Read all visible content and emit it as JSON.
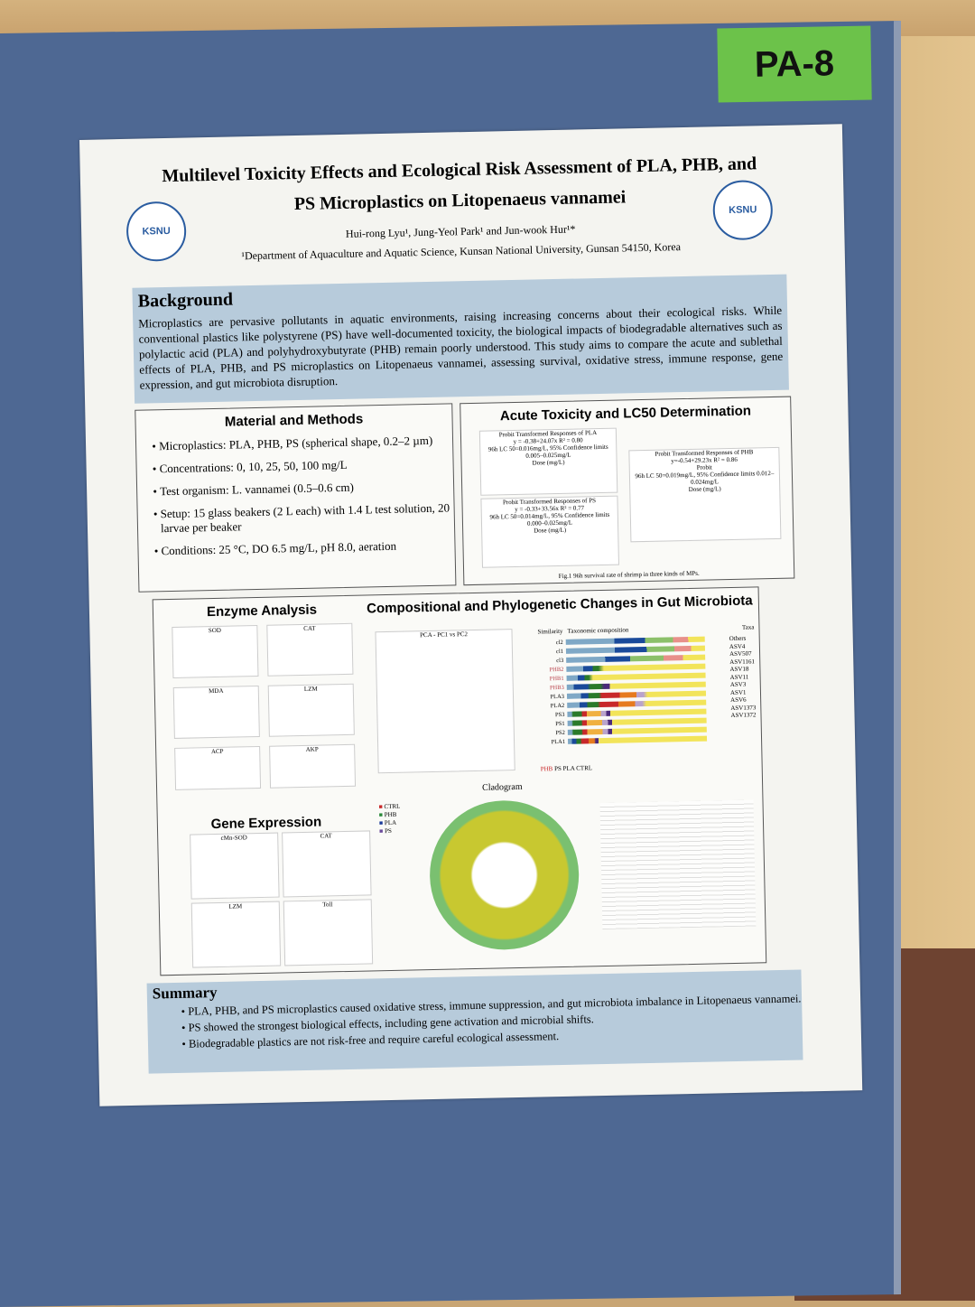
{
  "booth_tag": "PA-8",
  "poster": {
    "title_line1": "Multilevel Toxicity Effects and Ecological Risk Assessment of PLA, PHB, and",
    "title_line2": "PS Microplastics on Litopenaeus vannamei",
    "authors": "Hui-rong Lyu¹, Jung-Yeol Park¹ and Jun-wook Hur¹*",
    "affiliation": "¹Department of Aquaculture and Aquatic Science, Kunsan National University, Gunsan 54150, Korea",
    "logo_left": "KSNU",
    "logo_right": "KSNU",
    "background": {
      "heading": "Background",
      "text": "Microplastics are pervasive pollutants in aquatic environments, raising increasing concerns about their ecological risks. While conventional plastics like polystyrene (PS) have well-documented toxicity, the biological impacts of biodegradable alternatives such as polylactic acid (PLA) and polyhydroxybutyrate (PHB) remain poorly understood. This study aims to compare the acute and sublethal effects of PLA, PHB, and PS microplastics on Litopenaeus vannamei, assessing survival, oxidative stress, immune response, gene expression, and gut microbiota disruption."
    },
    "methods": {
      "heading": "Material and Methods",
      "items": [
        "Microplastics: PLA, PHB, PS (spherical shape, 0.2–2 µm)",
        "Concentrations: 0, 10, 25, 50, 100 mg/L",
        "Test organism: L. vannamei (0.5–0.6 cm)",
        "Setup: 15 glass beakers (2 L each) with 1.4 L test solution, 20 larvae per beaker",
        "Conditions: 25 °C, DO 6.5 mg/L, pH 8.0, aeration"
      ]
    },
    "acute": {
      "heading": "Acute Toxicity and LC50 Determination",
      "charts": [
        {
          "title": "Probit Transformed Responses of PLA",
          "eq": "y = -0.38+24.07x  R² = 0.80",
          "note": "96h LC 50=0.016mg/L, 95% Confidence limits 0.005–0.025mg/L"
        },
        {
          "title": "Probit Transformed Responses of PS",
          "eq": "y = -0.33+33.56x  R² = 0.77",
          "note": "96h LC 50=0.014mg/L, 95% Confidence limits 0.000–0.025mg/L"
        },
        {
          "title": "Probit Transformed Responses of PHB",
          "eq": "y=-0.54+29.23x  R² = 0.86",
          "note": "96h LC 50=0.019mg/L, 95% Confidence limits 0.012–0.024mg/L"
        }
      ],
      "xlabel": "Dose (mg/L)",
      "ylabel": "Probit",
      "caption": "Fig.1 96h survival rate of shrimp in three kinds of MPs."
    },
    "enzyme": {
      "heading": "Enzyme Analysis",
      "panels": [
        "SOD",
        "CAT",
        "MDA",
        "LZM",
        "ACP",
        "AKP"
      ]
    },
    "gene": {
      "heading": "Gene Expression",
      "panels": [
        "cMn-SOD",
        "CAT",
        "LZM",
        "Toll"
      ]
    },
    "micro": {
      "heading": "Compositional and Phylogenetic Changes in Gut Microbiota",
      "pca_title": "PCA - PC1 vs PC2",
      "similarity": "Similarity",
      "taxcomp": "Taxonomic composition",
      "taxa_label": "Taxa",
      "samples": [
        "cl2",
        "cl1",
        "cl3",
        "PHB2",
        "PHB1",
        "PHB3",
        "PLA3",
        "PLA2",
        "PS3",
        "PS1",
        "PS2",
        "PLA1"
      ],
      "taxa": [
        "Others",
        "ASV4",
        "ASV507",
        "ASV1161",
        "ASV18",
        "ASV11",
        "ASV3",
        "ASV1",
        "ASV6",
        "ASV1373",
        "ASV1372"
      ],
      "taxa_colors": [
        "#f2e45a",
        "#4b2a7a",
        "#b9a3cc",
        "#e67a1e",
        "#f0b040",
        "#c8282a",
        "#e8908a",
        "#2a7a2a",
        "#8cc06a",
        "#1a4a9a",
        "#7fa8c6"
      ],
      "groups": [
        "PHB",
        "PS",
        "PLA",
        "CTRL"
      ],
      "cladogram": "Cladogram",
      "clado_legend": [
        "CTRL",
        "PHB",
        "PLA",
        "PS"
      ]
    },
    "summary": {
      "heading": "Summary",
      "items": [
        "PLA, PHB, and PS microplastics caused oxidative stress, immune suppression, and gut microbiota imbalance in Litopenaeus vannamei.",
        "PS showed the strongest biological effects, including gene activation and microbial shifts.",
        "Biodegradable plastics are not risk-free and require careful ecological assessment."
      ]
    }
  }
}
